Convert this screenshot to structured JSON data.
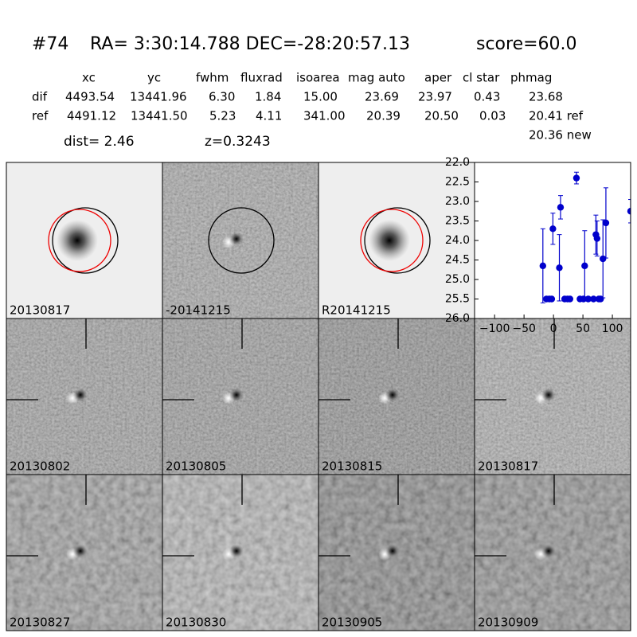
{
  "header": {
    "id": "#74",
    "coords": "RA= 3:30:14.788 DEC=-28:20:57.13",
    "score": "score=60.0"
  },
  "table": {
    "columns": [
      "xc",
      "yc",
      "fwhm",
      "fluxrad",
      "isoarea",
      "mag auto",
      "aper",
      "cl star",
      "phmag"
    ],
    "rows": [
      [
        "dif",
        "4493.54",
        "13441.96",
        "6.30",
        "1.84",
        "15.00",
        "23.69",
        "23.97",
        "0.43",
        "23.68"
      ],
      [
        "ref",
        "4491.12",
        "13441.50",
        "5.23",
        "4.11",
        "341.00",
        "20.39",
        "20.50",
        "0.03",
        "20.41 ref"
      ]
    ],
    "extra": "20.36 new",
    "dist": "dist=  2.46",
    "z": "z=0.3243"
  },
  "panels": [
    {
      "label": "20130817"
    },
    {
      "label": "-20141215"
    },
    {
      "label": "R20141215"
    },
    {
      "label": "20130802"
    },
    {
      "label": "20130805"
    },
    {
      "label": "20130815"
    },
    {
      "label": "20130817",
      "label_color": "#ff0000"
    },
    {
      "label": "20130827"
    },
    {
      "label": "20130830"
    },
    {
      "label": "20130905"
    },
    {
      "label": "20130909"
    }
  ],
  "chart_data": {
    "type": "scatter",
    "color": "#0000cc",
    "x": [
      -18,
      -12,
      -7,
      -1,
      -3,
      10,
      12,
      19,
      24,
      28,
      39,
      45,
      51,
      53,
      59,
      68,
      72,
      74,
      77,
      80,
      84,
      89,
      131
    ],
    "values": [
      24.65,
      25.5,
      25.5,
      23.7,
      25.5,
      24.7,
      23.15,
      25.5,
      25.5,
      25.5,
      22.4,
      25.5,
      25.5,
      24.65,
      25.5,
      25.5,
      23.85,
      23.95,
      25.5,
      25.5,
      24.47,
      23.55,
      23.25
    ],
    "errors": [
      0.95,
      0.05,
      0.05,
      0.4,
      0.05,
      0.85,
      0.3,
      0.05,
      0.05,
      0.05,
      0.15,
      0.05,
      0.05,
      0.9,
      0.05,
      0.05,
      0.5,
      0.45,
      0.05,
      0.05,
      1.0,
      0.9,
      0.3
    ],
    "xlim": [
      -134,
      131
    ],
    "ylim": [
      26,
      22
    ],
    "xticks": [
      {
        "value": -100,
        "label": "−100"
      },
      {
        "value": -50,
        "label": "−50"
      },
      0,
      50,
      100
    ],
    "yticks": [
      {
        "value": 22,
        "label": "22.0"
      },
      {
        "value": 22.5,
        "label": "22.5"
      },
      {
        "value": 23,
        "label": "23.0"
      },
      {
        "value": 23.5,
        "label": "23.5"
      },
      {
        "value": 24,
        "label": "24.0"
      },
      {
        "value": 24.5,
        "label": "24.5"
      },
      {
        "value": 25,
        "label": "25.0"
      },
      {
        "value": 25.5,
        "label": "25.5"
      },
      {
        "value": 26,
        "label": "26.0"
      }
    ]
  }
}
